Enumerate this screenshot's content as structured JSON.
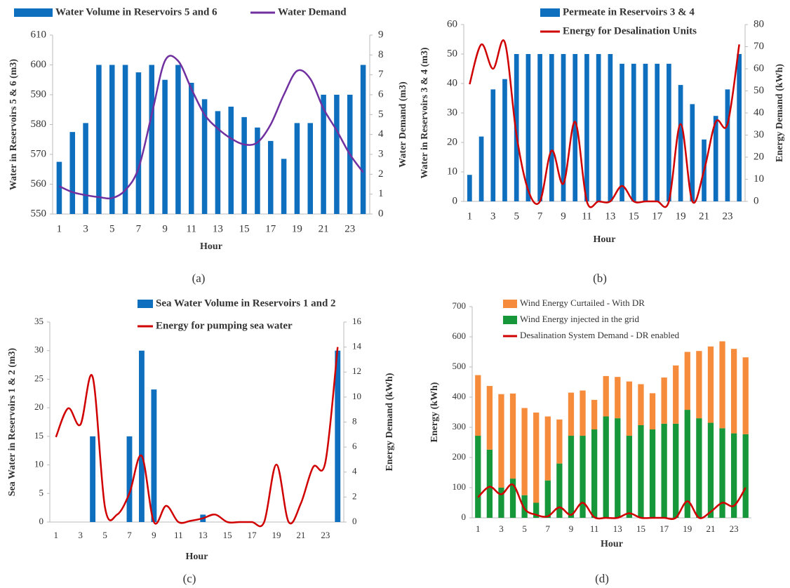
{
  "chart_data": [
    {
      "type": "combo",
      "caption": "(a)",
      "xlabel": "Hour",
      "ylabel": "Water in Reservoirs 5 & 6 (m3)",
      "y2label": "Water Demand (m3)",
      "categories": [
        "1",
        null,
        "3",
        null,
        "5",
        null,
        "7",
        null,
        "9",
        null,
        "11",
        null,
        "13",
        null,
        "15",
        null,
        "17",
        null,
        "19",
        null,
        "21",
        null,
        "23",
        null
      ],
      "series": [
        {
          "name": "Water Volume in Reservoirs 5 and 6",
          "color": "#0f6fbf",
          "kind": "bar",
          "axis": "y",
          "values": [
            567.5,
            577.5,
            580.5,
            600,
            600,
            600,
            597.5,
            600,
            595,
            600,
            594,
            588.5,
            584.5,
            586,
            582.5,
            579,
            574.5,
            568.5,
            580.5,
            580.5,
            590,
            590,
            590,
            600
          ]
        },
        {
          "name": "Water Demand",
          "color": "#7030a0",
          "kind": "line",
          "axis": "y2",
          "values": [
            1.4,
            1.1,
            0.95,
            0.85,
            0.8,
            1.2,
            2.3,
            5.0,
            7.7,
            7.7,
            6.3,
            5.0,
            4.3,
            3.8,
            3.5,
            3.6,
            4.5,
            6.0,
            7.2,
            6.8,
            5.3,
            4.2,
            3.0,
            2.1
          ]
        }
      ],
      "ylim": [
        550,
        610
      ],
      "yticks": [
        550,
        560,
        570,
        580,
        590,
        600,
        610
      ],
      "y2lim": [
        0,
        9
      ],
      "y2ticks": [
        0,
        1,
        2,
        3,
        4,
        5,
        6,
        7,
        8,
        9
      ],
      "legend": "top"
    },
    {
      "type": "combo",
      "caption": "(b)",
      "xlabel": "Hour",
      "ylabel": "Water in Reservoirs 3 & 4 (m3)",
      "y2label": "Energy Demand (kWh)",
      "categories": [
        "1",
        null,
        "3",
        null,
        "5",
        null,
        "7",
        null,
        "9",
        null,
        "11",
        null,
        "13",
        null,
        "15",
        null,
        "17",
        null,
        "19",
        null,
        "21",
        null,
        "23",
        null
      ],
      "series": [
        {
          "name": "Permeate in Reservoirs 3 & 4",
          "color": "#0f6fbf",
          "kind": "bar",
          "axis": "y",
          "values": [
            9,
            22,
            38,
            41.5,
            50,
            50,
            50,
            50,
            50,
            50,
            50,
            50,
            50,
            46.7,
            46.7,
            46.7,
            46.7,
            46.7,
            39.5,
            33,
            21,
            29,
            38,
            50
          ]
        },
        {
          "name": "Energy for Desalination Units",
          "color": "#d00000",
          "kind": "line",
          "axis": "y2",
          "values": [
            53,
            71,
            60,
            72,
            30,
            5,
            0,
            23,
            8,
            36,
            0,
            0,
            0,
            7,
            0,
            0,
            0,
            0,
            35,
            0,
            14,
            36,
            35,
            71
          ]
        }
      ],
      "ylim": [
        0,
        60
      ],
      "yticks": [
        0,
        10,
        20,
        30,
        40,
        50,
        60
      ],
      "y2lim": [
        0,
        80
      ],
      "y2ticks": [
        0,
        10,
        20,
        30,
        40,
        50,
        60,
        70,
        80
      ],
      "legend": "upper right"
    },
    {
      "type": "combo",
      "caption": "(c)",
      "xlabel": "Hour",
      "ylabel": "Sea Water in Reservoirs 1 & 2 (m3)",
      "y2label": "Energy Demand (kWh)",
      "categories": [
        "1",
        null,
        "3",
        null,
        "5",
        null,
        "7",
        null,
        "9",
        null,
        "11",
        null,
        "13",
        null,
        "15",
        null,
        "17",
        null,
        "19",
        null,
        "21",
        null,
        "23",
        null
      ],
      "series": [
        {
          "name": "Sea Water Volume in Reservoirs 1 and 2",
          "color": "#0f6fbf",
          "kind": "bar",
          "axis": "y",
          "values": [
            0,
            0,
            0,
            15,
            0,
            0,
            15,
            30,
            23.2,
            0,
            0,
            0,
            1.3,
            0,
            0,
            0,
            0,
            0,
            0,
            0,
            0,
            0,
            0,
            30
          ]
        },
        {
          "name": "Energy for pumping sea water",
          "color": "#d00000",
          "kind": "line",
          "axis": "y2",
          "values": [
            6.8,
            9.1,
            7.8,
            11.6,
            1.2,
            0.6,
            2.3,
            5.3,
            0,
            1.3,
            0,
            0.1,
            0.3,
            0.6,
            0,
            0,
            0,
            0,
            4.6,
            0,
            1.5,
            4.4,
            4.8,
            14
          ]
        }
      ],
      "ylim": [
        0,
        35
      ],
      "yticks": [
        0,
        5,
        10,
        15,
        20,
        25,
        30,
        35
      ],
      "y2lim": [
        0,
        16
      ],
      "y2ticks": [
        0,
        2,
        4,
        6,
        8,
        10,
        12,
        14,
        16
      ],
      "legend": "upper center"
    },
    {
      "type": "stacked",
      "caption": "(d)",
      "xlabel": "Hour",
      "ylabel": "Energy (kWh)",
      "categories": [
        "1",
        null,
        "3",
        null,
        "5",
        null,
        "7",
        null,
        "9",
        null,
        "11",
        null,
        "13",
        null,
        "15",
        null,
        "17",
        null,
        "19",
        null,
        "21",
        null,
        "23",
        null
      ],
      "series": [
        {
          "name": "Wind Energy Curtailed - With DR",
          "color": "#f78b3c",
          "kind": "bar",
          "axis": "y",
          "values": [
            201,
            211,
            310,
            282,
            289,
            299,
            212,
            146,
            143,
            150,
            98,
            134,
            137,
            180,
            136,
            120,
            153,
            193,
            192,
            223,
            253,
            288,
            280,
            255
          ]
        },
        {
          "name": "Wind Energy injected in the grid",
          "color": "#16973a",
          "kind": "bar",
          "axis": "y",
          "values": [
            272,
            226,
            100,
            130,
            75,
            50,
            124,
            180,
            272,
            272,
            293,
            336,
            330,
            272,
            307,
            293,
            312,
            312,
            358,
            330,
            315,
            297,
            280,
            277
          ]
        },
        {
          "name": "Desalination System Demand - DR enabled",
          "color": "#d00000",
          "kind": "line",
          "axis": "y",
          "values": [
            68,
            103,
            78,
            110,
            30,
            10,
            5,
            35,
            10,
            50,
            2,
            0,
            0,
            15,
            0,
            0,
            0,
            0,
            55,
            0,
            20,
            50,
            40,
            100
          ]
        }
      ],
      "ylim": [
        0,
        700
      ],
      "yticks": [
        0,
        100,
        200,
        300,
        400,
        500,
        600,
        700
      ],
      "legend": "upper left"
    }
  ]
}
